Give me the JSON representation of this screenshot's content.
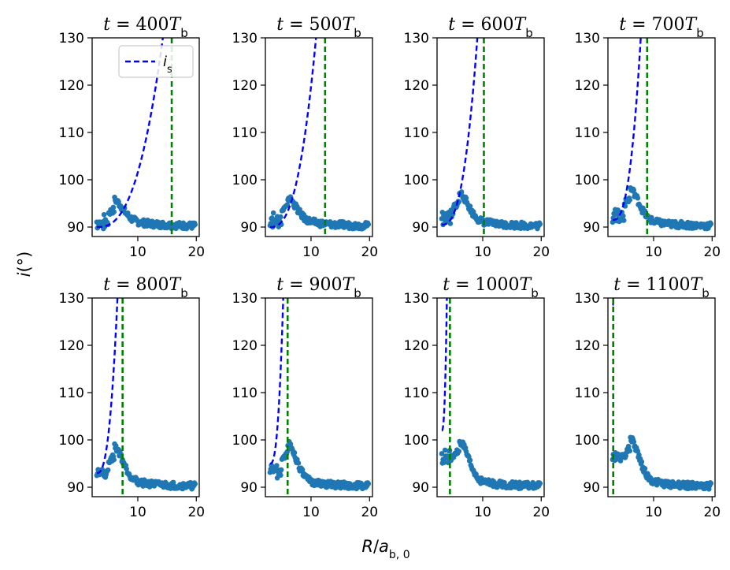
{
  "figure": {
    "ylabel": "i(°)",
    "xlabel": "R/a_b,0",
    "legend_label": "i_s"
  },
  "colors": {
    "is_curve": "#0000ff",
    "vline": "#008000",
    "scatter": "#1f77b4",
    "axes": "#000000"
  },
  "chart_data": [
    {
      "type": "scatter",
      "title": "t = 400T_b",
      "xlim": [
        2.2,
        20.5
      ],
      "ylim": [
        88,
        130
      ],
      "xticks": [
        10,
        20
      ],
      "yticks": [
        90,
        100,
        110,
        120,
        130
      ],
      "is_curve": {
        "x0": 3.0,
        "x_end": 14.5,
        "y0": 90.0,
        "y_end": 130.0
      },
      "vline_x": 15.8,
      "peak": {
        "x": 6.0,
        "y": 93.5
      }
    },
    {
      "type": "scatter",
      "title": "t = 500T_b",
      "xlim": [
        2.2,
        20.5
      ],
      "ylim": [
        88,
        130
      ],
      "xticks": [
        10,
        20
      ],
      "yticks": [
        90,
        100,
        110,
        120,
        130
      ],
      "is_curve": {
        "x0": 3.0,
        "x_end": 11.0,
        "y0": 90.0,
        "y_end": 130.0
      },
      "vline_x": 12.4,
      "peak": {
        "x": 6.0,
        "y": 94.0
      }
    },
    {
      "type": "scatter",
      "title": "t = 600T_b",
      "xlim": [
        2.2,
        20.5
      ],
      "ylim": [
        88,
        130
      ],
      "xticks": [
        10,
        20
      ],
      "yticks": [
        90,
        100,
        110,
        120,
        130
      ],
      "is_curve": {
        "x0": 3.0,
        "x_end": 9.2,
        "y0": 90.5,
        "y_end": 130.0
      },
      "vline_x": 10.2,
      "peak": {
        "x": 6.0,
        "y": 95.0
      }
    },
    {
      "type": "scatter",
      "title": "t = 700T_b",
      "xlim": [
        2.2,
        20.5
      ],
      "ylim": [
        88,
        130
      ],
      "xticks": [
        10,
        20
      ],
      "yticks": [
        90,
        100,
        110,
        120,
        130
      ],
      "is_curve": {
        "x0": 3.0,
        "x_end": 7.9,
        "y0": 91.5,
        "y_end": 130.0
      },
      "vline_x": 8.9,
      "peak": {
        "x": 6.0,
        "y": 95.8
      }
    },
    {
      "type": "scatter",
      "title": "t = 800T_b",
      "xlim": [
        2.2,
        20.5
      ],
      "ylim": [
        88,
        130
      ],
      "xticks": [
        10,
        20
      ],
      "yticks": [
        90,
        100,
        110,
        120,
        130
      ],
      "is_curve": {
        "x0": 3.0,
        "x_end": 6.6,
        "y0": 93.0,
        "y_end": 130.0
      },
      "vline_x": 7.4,
      "peak": {
        "x": 6.0,
        "y": 96.3
      }
    },
    {
      "type": "scatter",
      "title": "t = 900T_b",
      "xlim": [
        2.2,
        20.5
      ],
      "ylim": [
        88,
        130
      ],
      "xticks": [
        10,
        20
      ],
      "yticks": [
        90,
        100,
        110,
        120,
        130
      ],
      "is_curve": {
        "x0": 3.0,
        "x_end": 5.3,
        "y0": 95.0,
        "y_end": 130.0
      },
      "vline_x": 6.0,
      "peak": {
        "x": 6.0,
        "y": 97.0
      }
    },
    {
      "type": "scatter",
      "title": "t = 1000T_b",
      "xlim": [
        2.2,
        20.5
      ],
      "ylim": [
        88,
        130
      ],
      "xticks": [
        10,
        20
      ],
      "yticks": [
        90,
        100,
        110,
        120,
        130
      ],
      "is_curve": {
        "x0": 3.0,
        "x_end": 3.9,
        "y0": 102.0,
        "y_end": 130.0
      },
      "vline_x": 4.4,
      "peak": {
        "x": 6.0,
        "y": 97.5
      }
    },
    {
      "type": "scatter",
      "title": "t = 1100T_b",
      "xlim": [
        2.2,
        20.5
      ],
      "ylim": [
        88,
        130
      ],
      "xticks": [
        10,
        20
      ],
      "yticks": [
        90,
        100,
        110,
        120,
        130
      ],
      "is_curve": {
        "x0": 3.0,
        "x_end": 3.2,
        "y0": 128.5,
        "y_end": 130.0
      },
      "vline_x": 3.1,
      "peak": {
        "x": 6.0,
        "y": 98.0
      }
    }
  ]
}
